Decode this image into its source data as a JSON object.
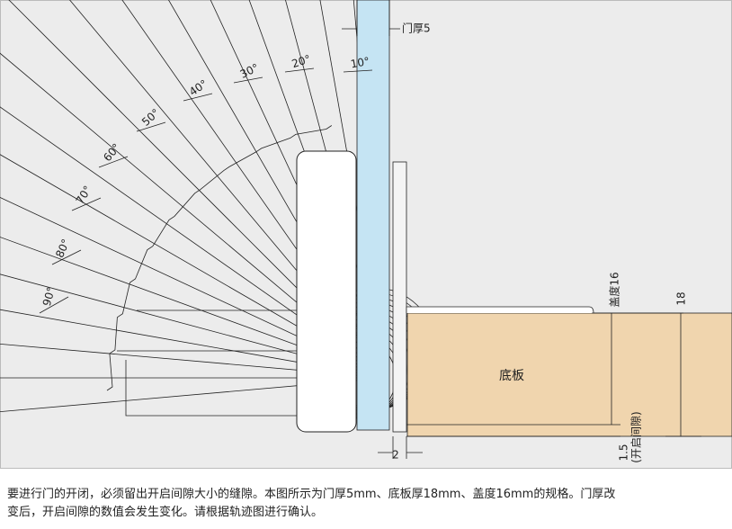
{
  "labels": {
    "door_thickness": "门厚5",
    "cover": "盖度16",
    "board_thickness": "18",
    "board": "底板",
    "gap_width": "2",
    "opening_gap_value": "1.5",
    "opening_gap_name": "(开启间隙)"
  },
  "angles": [
    "10°",
    "20°",
    "30°",
    "40°",
    "50°",
    "60°",
    "70°",
    "80°",
    "90°"
  ],
  "caption": [
    "要进行门的开闭，必须留出开启间隙大小的缝隙。本图所示为门厚5mm、底板厚18mm、盖度16mm的规格。门厚改",
    "变后，开启间隙的数值会发生变化。请根据轨迹图进行确认。"
  ]
}
